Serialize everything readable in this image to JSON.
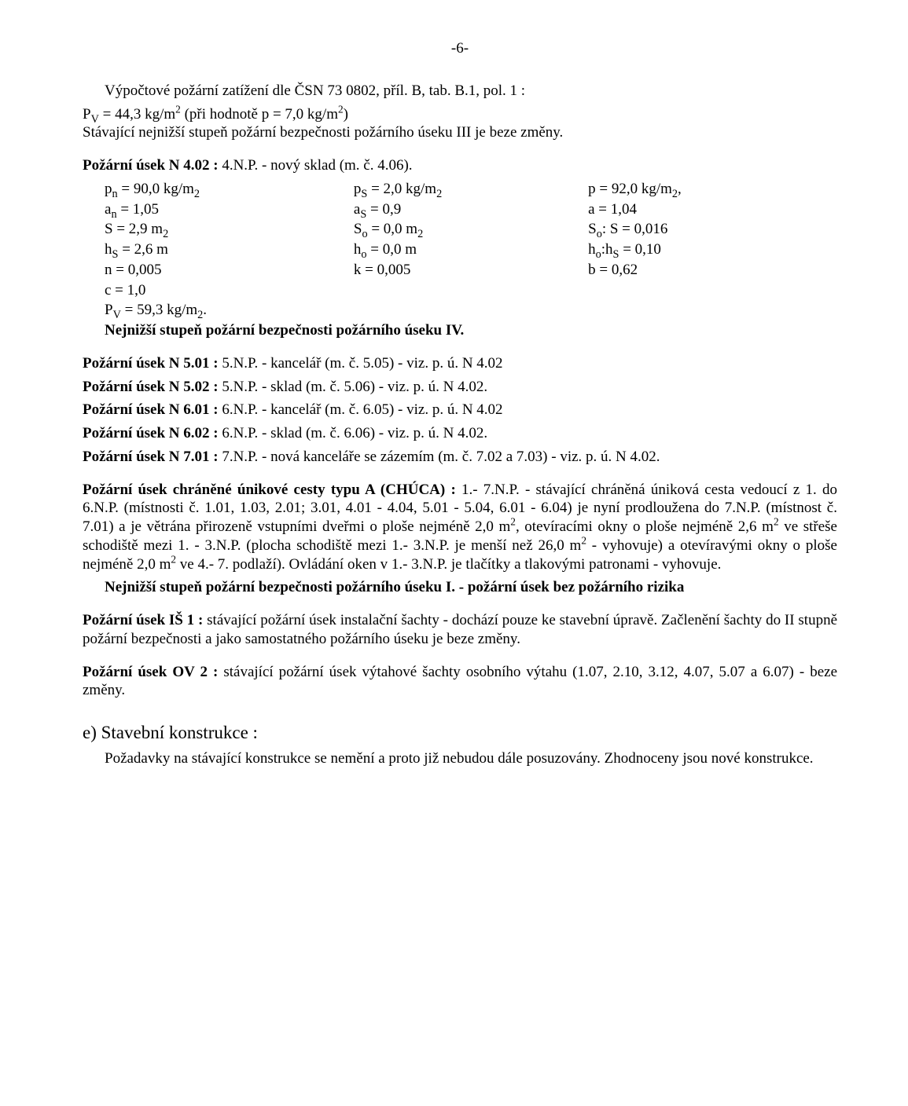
{
  "pageNumber": "-6-",
  "intro": {
    "line1": "Výpočtové požární zatížení dle ČSN 73 0802, příl. B, tab. B.1, pol. 1 :",
    "line2_pre": "P",
    "line2_sub": "V",
    "line2_mid": " = 44,3 kg/m",
    "line2_sup": "2",
    "line2_tail": "   (při hodnotě p = 7,0 kg/m",
    "line2_sup2": "2",
    "line2_end": ")",
    "line3": "Stávající nejnižší stupeň požární bezpečnosti požárního úseku III je beze změny."
  },
  "n402": {
    "title": "Požární  úsek N 4.02 : ",
    "titleTail": "4.N.P. - nový sklad (m. č. 4.06).",
    "rows": [
      {
        "c1a": "p",
        "c1sub": "n",
        "c1b": "  = 90,0 kg/m",
        "c1sub2": "2",
        "c2a": "p",
        "c2sub": "S",
        "c2b": " = 2,0 kg/m",
        "c2sub2": "2",
        "c3a": "p  =  92,0 kg/m",
        "c3sub": "2",
        "c3b": ","
      },
      {
        "c1a": "a",
        "c1sub": "n",
        "c1b": "  =  1,05",
        "c2a": "a",
        "c2sub": "S",
        "c2b": " =  0,9",
        "c3a": "a  =  1,04"
      },
      {
        "c1a": "S  = 2,9 m",
        "c1sub": "2",
        "c2a": "S",
        "c2sub": "o",
        "c2b": " = 0,0 m",
        "c2sub2": "2",
        "c3a": "S",
        "c3sub": "o",
        "c3b": ": S =  0,016"
      },
      {
        "c1a": "h",
        "c1sub": "S",
        "c1b": " = 2,6 m",
        "c2a": "h",
        "c2sub": "o",
        "c2b": " = 0,0 m",
        "c3a": "h",
        "c3sub": "o",
        "c3b": ":h",
        "c3sub2": "S",
        "c3c": "  =  0,10"
      },
      {
        "c1a": "n  =  0,005",
        "c2a": " k = 0,005",
        "c3a": "b  =  0,62"
      },
      {
        "c1a": "c  = 1,0"
      },
      {
        "c1a": "P",
        "c1sub": "V",
        "c1b": " = 59,3 kg/m",
        "c1sub2": "2",
        "c1c": "."
      }
    ],
    "last": "Nejnižší stupeň požární bezpečnosti požárního úseku IV."
  },
  "list": [
    {
      "b": "Požární  úsek N 5.01 : ",
      "t": "5.N.P. - kancelář (m. č. 5.05) - viz. p. ú. N 4.02"
    },
    {
      "b": "Požární  úsek N 5.02 : ",
      "t": "5.N.P. - sklad (m. č. 5.06) - viz. p. ú. N 4.02."
    },
    {
      "b": "Požární  úsek N 6.01 : ",
      "t": "6.N.P. - kancelář (m. č. 6.05) - viz. p. ú. N 4.02"
    },
    {
      "b": "Požární  úsek N 6.02 : ",
      "t": "6.N.P. - sklad (m. č. 6.06) - viz. p. ú. N 4.02."
    },
    {
      "b": "Požární  úsek N 7.01 : ",
      "t": "7.N.P. - nová kanceláře se zázemím (m. č. 7.02 a 7.03) - viz. p. ú. N 4.02."
    }
  ],
  "chuca": {
    "titleBold": "Požární  úsek chráněné únikové cesty typu A (CHÚCA) : ",
    "body": "1.- 7.N.P. - stávající chráněná úniková cesta vedoucí z 1. do 6.N.P. (místnosti č. 1.01, 1.03, 2.01; 3.01, 4.01 - 4.04, 5.01 - 5.04, 6.01 - 6.04) je nyní prodloužena do 7.N.P. (místnost č. 7.01) a je větrána přirozeně vstupními dveřmi o ploše nejméně 2,0 m2, otevíracími okny o ploše nejméně 2,6 m2 ve  střeše schodiště mezi 1. - 3.N.P. (plocha schodiště mezi 1.- 3.N.P. je menší než 26,0 m2 - vyhovuje) a otevíravými okny o ploše nejméně 2,0 m2 ve 4.- 7. podlaží). Ovládání oken v 1.- 3.N.P. je tlačítky a tlakovými patronami - vyhovuje.",
    "boldTail": "Nejnižší stupeň požární bezpečnosti požárního úseku I. - požární úsek bez požárního rizika"
  },
  "is1": {
    "b": "Požární  úsek IŠ 1 : ",
    "t": "stávající požární úsek instalační šachty - dochází pouze ke stavební úpravě. Začlenění šachty do II stupně požární bezpečnosti a jako samostatného požárního úseku je beze změny."
  },
  "ov2": {
    "b": "Požární  úsek OV 2 : ",
    "t": "stávající požární úsek výtahové šachty osobního výtahu (1.07, 2.10, 3.12, 4.07, 5.07 a 6.07) - beze změny."
  },
  "sectionE": {
    "heading": "e)  Stavební konstrukce :",
    "p1": "Požadavky na stávající konstrukce se nemění a proto již nebudou dále posuzovány. Zhodnoceny jsou nové konstrukce."
  }
}
